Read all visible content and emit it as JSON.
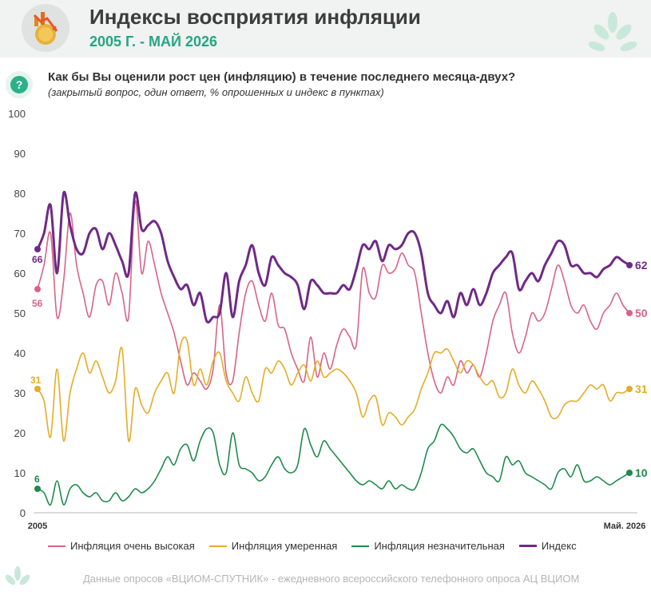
{
  "header": {
    "title": "Индексы восприятия инфляции",
    "subtitle": "2005 Г. - МАЙ 2026"
  },
  "question": {
    "text": "Как бы Вы оценили рост цен (инфляцию) в течение последнего месяца-двух?",
    "note": "(закрытый вопрос, один ответ, % опрошенных и индекс в пунктах)",
    "icon": "question-icon"
  },
  "source": "Данные опросов «ВЦИОМ-СПУТНИК» - ежедневного всероссийского телефонного опроса АЦ ВЦИОМ",
  "colors": {
    "accent": "#26a582",
    "very_high": "#d96387",
    "moderate": "#e3ad25",
    "insignificant": "#1f8a4c",
    "index": "#6e2a86"
  },
  "chart_data": {
    "type": "line",
    "title": "Индексы восприятия инфляции",
    "subtitle": "2005 Г. - МАЙ 2026",
    "xlabel": "",
    "ylabel": "",
    "x_tick_labels": [
      "2005",
      "Май. 2026"
    ],
    "y_ticks": [
      0,
      10,
      20,
      30,
      40,
      50,
      60,
      70,
      80,
      90,
      100
    ],
    "ylim": [
      0,
      100
    ],
    "grid": false,
    "legend_position": "bottom",
    "series": [
      {
        "name": "Инфляция очень высокая",
        "color": "#d96387",
        "start_label": "56",
        "end_label": "50",
        "values": [
          56,
          62,
          70,
          49,
          58,
          75,
          62,
          55,
          49,
          57,
          58,
          52,
          60,
          55,
          49,
          78,
          60,
          68,
          62,
          55,
          50,
          45,
          38,
          32,
          35,
          33,
          31,
          36,
          52,
          35,
          33,
          45,
          55,
          58,
          52,
          48,
          55,
          47,
          46,
          40,
          36,
          33,
          44,
          34,
          40,
          36,
          42,
          46,
          44,
          42,
          61,
          55,
          54,
          62,
          60,
          61,
          65,
          62,
          60,
          50,
          40,
          33,
          30,
          34,
          32,
          38,
          35,
          37,
          34,
          40,
          48,
          52,
          55,
          45,
          40,
          44,
          50,
          48,
          50,
          56,
          62,
          58,
          52,
          50,
          52,
          48,
          46,
          50,
          52,
          55,
          52,
          50
        ]
      },
      {
        "name": "Инфляция умеренная",
        "color": "#e3ad25",
        "start_label": "31",
        "end_label": "31",
        "values": [
          31,
          28,
          19,
          36,
          18,
          30,
          36,
          40,
          35,
          38,
          34,
          30,
          33,
          41,
          18,
          31,
          27,
          25,
          30,
          33,
          35,
          30,
          42,
          43,
          32,
          36,
          32,
          38,
          40,
          33,
          30,
          28,
          34,
          30,
          28,
          36,
          35,
          38,
          36,
          32,
          35,
          37,
          33,
          38,
          34,
          35,
          36,
          35,
          33,
          30,
          24,
          28,
          29,
          22,
          25,
          24,
          22,
          24,
          26,
          31,
          35,
          40,
          40,
          41,
          38,
          35,
          38,
          37,
          34,
          32,
          33,
          29,
          30,
          36,
          32,
          30,
          33,
          31,
          28,
          24,
          24,
          27,
          28,
          28,
          30,
          32,
          31,
          32,
          28,
          30,
          30,
          31
        ]
      },
      {
        "name": "Инфляция незначительная",
        "color": "#1f8a4c",
        "start_label": "6",
        "end_label": "10",
        "values": [
          6,
          5,
          2,
          8,
          2,
          6,
          7,
          5,
          4,
          5,
          3,
          3,
          5,
          3,
          4,
          6,
          5,
          6,
          8,
          11,
          14,
          12,
          16,
          17,
          13,
          18,
          21,
          20,
          12,
          10,
          20,
          12,
          11,
          10,
          8,
          9,
          12,
          14,
          11,
          10,
          12,
          21,
          17,
          14,
          18,
          16,
          14,
          12,
          10,
          8,
          7,
          8,
          7,
          6,
          8,
          6,
          7,
          6,
          6,
          10,
          16,
          18,
          22,
          21,
          19,
          16,
          15,
          16,
          13,
          10,
          9,
          8,
          14,
          12,
          13,
          10,
          9,
          8,
          7,
          6,
          10,
          11,
          9,
          12,
          8,
          8,
          9,
          8,
          7,
          8,
          9,
          10
        ]
      },
      {
        "name": "Индекс",
        "color": "#6e2a86",
        "start_label": "66",
        "end_label": "62",
        "values": [
          66,
          70,
          77,
          60,
          80,
          72,
          66,
          65,
          70,
          71,
          66,
          70,
          67,
          63,
          60,
          80,
          71,
          72,
          73,
          70,
          63,
          59,
          56,
          57,
          52,
          55,
          48,
          49,
          50,
          60,
          49,
          58,
          62,
          67,
          60,
          57,
          64,
          62,
          60,
          59,
          57,
          51,
          58,
          57,
          55,
          55,
          55,
          57,
          56,
          61,
          67,
          66,
          68,
          63,
          67,
          66,
          67,
          70,
          70,
          65,
          55,
          52,
          50,
          53,
          49,
          55,
          52,
          56,
          52,
          55,
          60,
          62,
          64,
          65,
          56,
          58,
          60,
          58,
          62,
          65,
          68,
          67,
          62,
          62,
          60,
          60,
          59,
          61,
          62,
          64,
          63,
          62
        ]
      }
    ]
  }
}
